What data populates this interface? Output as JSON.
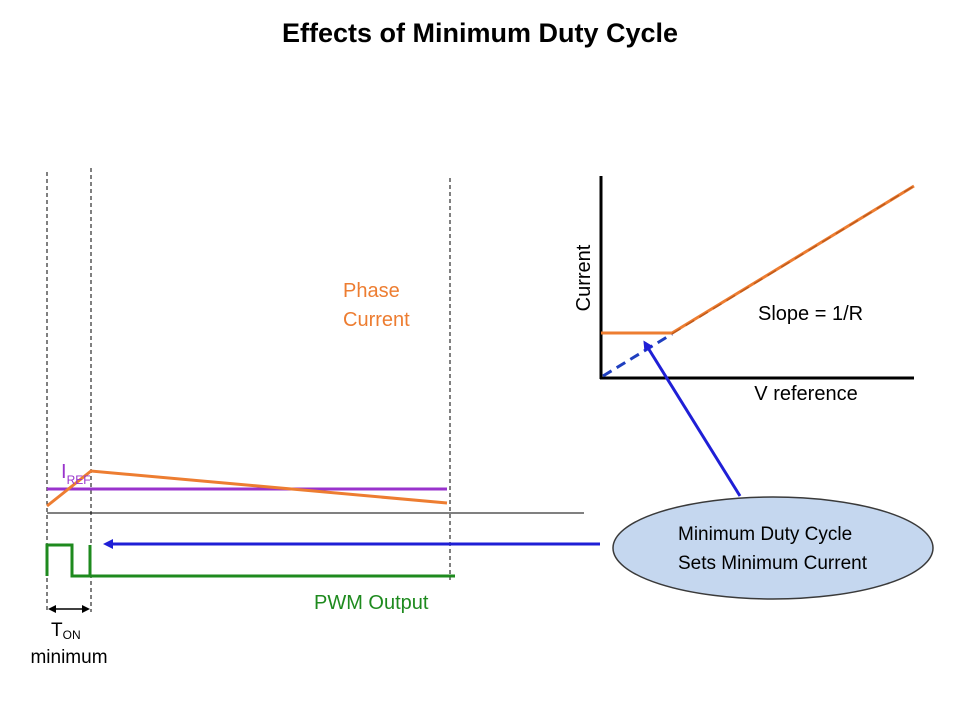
{
  "title": "Effects of Minimum Duty Cycle",
  "labels": {
    "phase_line1": "Phase",
    "phase_line2": "Current",
    "iref_main": "I",
    "iref_sub": "REF",
    "pwm_output": "PWM Output",
    "ton_main": "T",
    "ton_sub": "ON",
    "ton_minimum": "minimum"
  },
  "graph": {
    "y_axis_label": "Current",
    "x_axis_label": "V reference",
    "slope_label": "Slope = 1/R"
  },
  "callout": {
    "line1": "Minimum Duty Cycle",
    "line2": "Sets Minimum Current"
  },
  "colors": {
    "phase_current": "#ED7D31",
    "iref": "#9933CC",
    "pwm": "#1E8A1E",
    "arrow": "#1F1FD6",
    "callout_fill": "#C5D7EF",
    "callout_stroke": "#3A3A3A",
    "dashed_blue": "#1F3FBF",
    "axis": "#000000"
  }
}
